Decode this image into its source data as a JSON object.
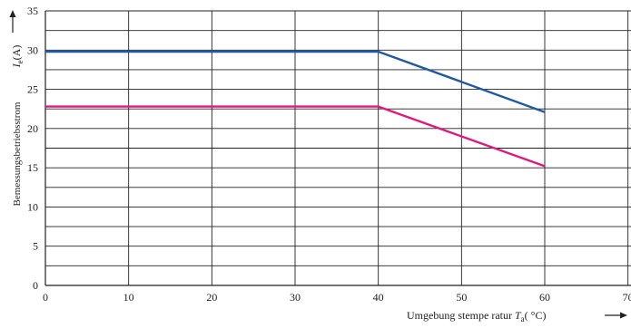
{
  "chart_data": {
    "type": "line",
    "xlabel": "Umgebung stempe ratur",
    "xlabel_symbol": "T",
    "xlabel_sub": "a",
    "xlabel_unit": "( °C)",
    "ylabel": "Bemessungsbetriebsstrom",
    "ylabel_symbol": "I",
    "ylabel_sub": "e",
    "ylabel_unit": "(A)",
    "xlim": [
      0,
      70
    ],
    "ylim": [
      0,
      35
    ],
    "x_ticks": [
      "0",
      "10",
      "20",
      "30",
      "40",
      "50",
      "60",
      "70"
    ],
    "y_ticks": [
      "0",
      "5",
      "10",
      "15",
      "20",
      "25",
      "30",
      "35"
    ],
    "grid": true,
    "series": [
      {
        "color": "#1f5aa6",
        "points": [
          [
            0,
            29.8
          ],
          [
            40,
            29.8
          ],
          [
            60,
            22.1
          ]
        ]
      },
      {
        "color": "#e0197d",
        "points": [
          [
            0,
            22.8
          ],
          [
            40,
            22.8
          ],
          [
            60,
            15.2
          ]
        ]
      }
    ]
  }
}
